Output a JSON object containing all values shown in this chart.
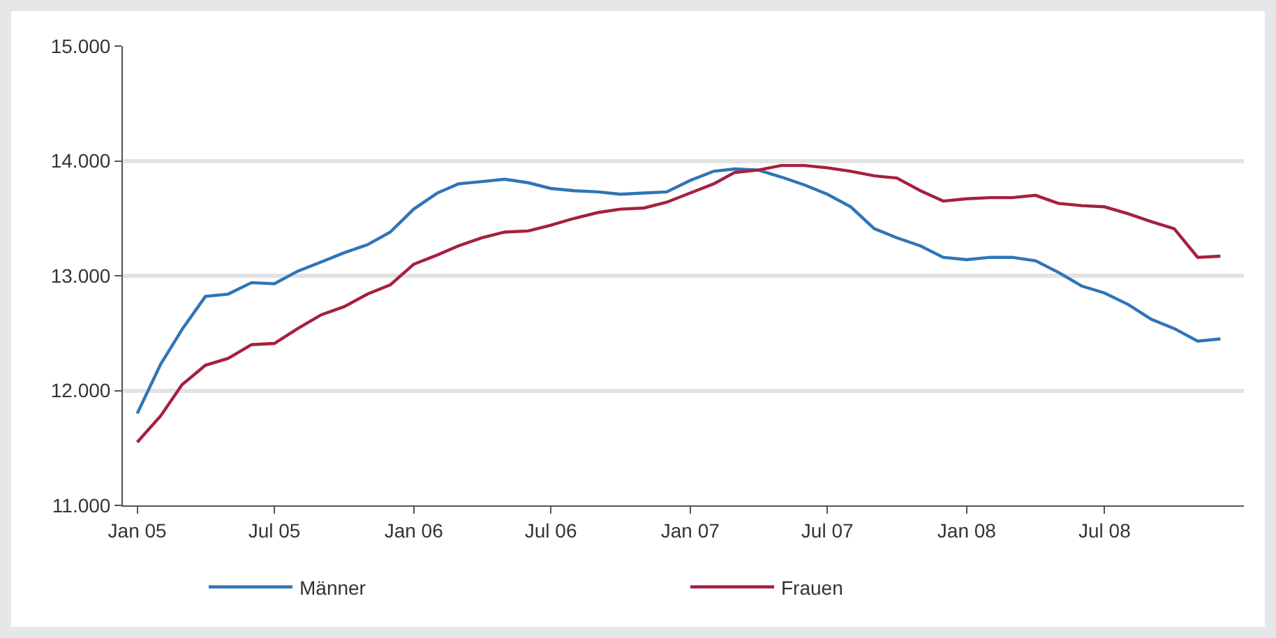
{
  "chart_data": {
    "type": "line",
    "x": [
      "2005-01",
      "2005-02",
      "2005-03",
      "2005-04",
      "2005-05",
      "2005-06",
      "2005-07",
      "2005-08",
      "2005-09",
      "2005-10",
      "2005-11",
      "2005-12",
      "2006-01",
      "2006-02",
      "2006-03",
      "2006-04",
      "2006-05",
      "2006-06",
      "2006-07",
      "2006-08",
      "2006-09",
      "2006-10",
      "2006-11",
      "2006-12",
      "2007-01",
      "2007-02",
      "2007-03",
      "2007-04",
      "2007-05",
      "2007-06",
      "2007-07",
      "2007-08",
      "2007-09",
      "2007-10",
      "2007-11",
      "2007-12",
      "2008-01",
      "2008-02",
      "2008-03",
      "2008-04",
      "2008-05",
      "2008-06",
      "2008-07",
      "2008-08",
      "2008-09",
      "2008-10",
      "2008-11",
      "2008-12"
    ],
    "series": [
      {
        "name": "Männer",
        "color": "#2e75b6",
        "values": [
          11800,
          12230,
          12530,
          12820,
          12840,
          12940,
          12930,
          13040,
          13120,
          13200,
          13270,
          13380,
          13580,
          13720,
          13800,
          13820,
          13840,
          13810,
          13760,
          13740,
          13730,
          13710,
          13720,
          13730,
          13830,
          13910,
          13930,
          13920,
          13860,
          13790,
          13710,
          13600,
          13410,
          13330,
          13260,
          13160,
          13140,
          13160,
          13160,
          13130,
          13030,
          12910,
          12850,
          12750,
          12620,
          12540,
          12430,
          12450
        ]
      },
      {
        "name": "Frauen",
        "color": "#a6203f",
        "values": [
          11550,
          11780,
          12050,
          12220,
          12280,
          12400,
          12410,
          12540,
          12660,
          12730,
          12840,
          12920,
          13100,
          13180,
          13260,
          13330,
          13380,
          13390,
          13440,
          13500,
          13550,
          13580,
          13590,
          13640,
          13720,
          13800,
          13900,
          13920,
          13960,
          13960,
          13940,
          13910,
          13870,
          13850,
          13740,
          13650,
          13670,
          13680,
          13680,
          13700,
          13630,
          13610,
          13600,
          13540,
          13470,
          13410,
          13160,
          13170
        ]
      }
    ],
    "xlim": [
      "2004-12-13",
      "2009-01-01"
    ],
    "xticks": [
      {
        "value": "2005-01",
        "label": "Jan 05"
      },
      {
        "value": "2005-07",
        "label": "Jul 05"
      },
      {
        "value": "2006-01",
        "label": "Jan 06"
      },
      {
        "value": "2006-07",
        "label": "Jul 06"
      },
      {
        "value": "2007-01",
        "label": "Jan 07"
      },
      {
        "value": "2007-07",
        "label": "Jul 07"
      },
      {
        "value": "2008-01",
        "label": "Jan 08"
      },
      {
        "value": "2008-07",
        "label": "Jul 08"
      }
    ],
    "ylim": [
      11000,
      15000
    ],
    "yticks": [
      {
        "value": 11000,
        "label": "11.000"
      },
      {
        "value": 12000,
        "label": "12.000"
      },
      {
        "value": 13000,
        "label": "13.000"
      },
      {
        "value": 14000,
        "label": "14.000"
      },
      {
        "value": 15000,
        "label": "15.000"
      }
    ],
    "grid": "y",
    "legend": "bottom",
    "marker": "none",
    "line_style": "solid"
  }
}
